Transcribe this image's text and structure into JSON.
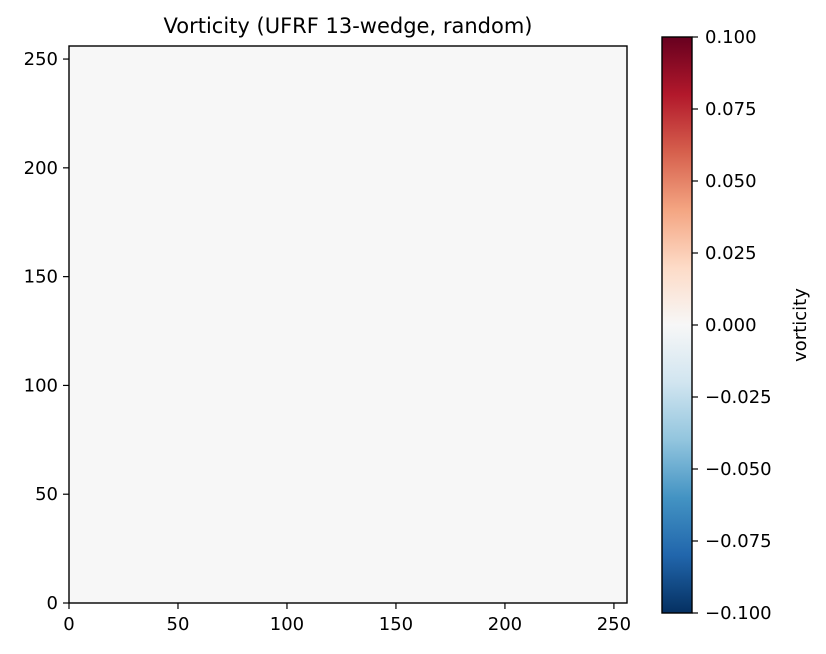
{
  "chart_data": {
    "type": "heatmap",
    "title": "Vorticity (UFRF 13-wedge, random)",
    "xlabel": "",
    "ylabel": "",
    "xlim": [
      0,
      256
    ],
    "ylim": [
      0,
      256
    ],
    "x_ticks": [
      0,
      50,
      100,
      150,
      200,
      250
    ],
    "y_ticks": [
      0,
      50,
      100,
      150,
      200,
      250
    ],
    "field_value": 0.0,
    "colormap": "RdBu_r",
    "colormap_stops": [
      "#053061",
      "#2166ac",
      "#4393c3",
      "#92c5de",
      "#d1e5f0",
      "#f7f7f7",
      "#fddbc7",
      "#f4a582",
      "#d6604d",
      "#b2182b",
      "#67001f"
    ],
    "colorbar": {
      "label": "vorticity",
      "range": [
        -0.1,
        0.1
      ],
      "ticks": [
        -0.1,
        -0.075,
        -0.05,
        -0.025,
        0.0,
        0.025,
        0.05,
        0.075,
        0.1
      ],
      "tick_labels": [
        "−0.100",
        "−0.075",
        "−0.050",
        "−0.025",
        "0.000",
        "0.025",
        "0.050",
        "0.075",
        "0.100"
      ]
    }
  }
}
